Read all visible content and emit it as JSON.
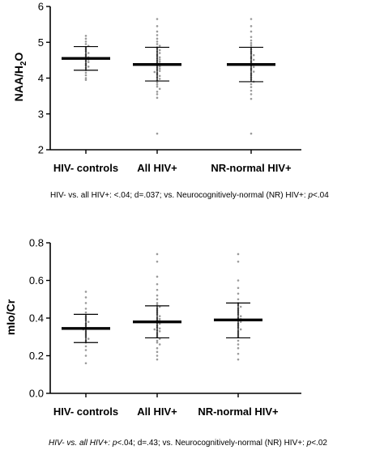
{
  "chart_data": [
    {
      "type": "scatter",
      "ylabel": "NAA/H2O",
      "ylabel_sub": "2",
      "ylabel_tail": "O",
      "ylabel_head": "NAA/H",
      "ylim": [
        2,
        6
      ],
      "yticks": [
        2,
        3,
        4,
        5,
        6
      ],
      "ytick_labels": [
        "2",
        "3",
        "4",
        "5",
        "6"
      ],
      "categories": [
        "HIV- controls",
        "All HIV+",
        "NR-normal HIV+"
      ],
      "groups": [
        {
          "name": "HIV- controls",
          "mean": 4.55,
          "sd_low": 4.22,
          "sd_high": 4.88,
          "points": [
            5.18,
            5.1,
            5.02,
            4.95,
            4.9,
            4.85,
            4.8,
            4.75,
            4.7,
            4.66,
            4.62,
            4.58,
            4.55,
            4.52,
            4.48,
            4.45,
            4.4,
            4.36,
            4.32,
            4.28,
            4.22,
            4.15,
            4.08,
            4.0,
            3.95
          ]
        },
        {
          "name": "All HIV+",
          "mean": 4.38,
          "sd_low": 3.92,
          "sd_high": 4.86,
          "points": [
            5.65,
            5.45,
            5.3,
            5.2,
            5.1,
            5.02,
            4.95,
            4.9,
            4.86,
            4.82,
            4.78,
            4.74,
            4.7,
            4.66,
            4.62,
            4.58,
            4.55,
            4.52,
            4.49,
            4.46,
            4.43,
            4.4,
            4.38,
            4.35,
            4.32,
            4.29,
            4.26,
            4.23,
            4.2,
            4.17,
            4.14,
            4.1,
            4.06,
            4.02,
            3.98,
            3.93,
            3.88,
            3.82,
            3.76,
            3.7,
            3.62,
            3.55,
            3.45,
            2.45
          ]
        },
        {
          "name": "NR-normal HIV+",
          "mean": 4.38,
          "sd_low": 3.9,
          "sd_high": 4.86,
          "points": [
            5.65,
            5.45,
            5.3,
            5.15,
            5.05,
            4.98,
            4.92,
            4.86,
            4.8,
            4.74,
            4.69,
            4.64,
            4.59,
            4.55,
            4.51,
            4.47,
            4.43,
            4.39,
            4.35,
            4.31,
            4.27,
            4.23,
            4.18,
            4.13,
            4.08,
            4.02,
            3.96,
            3.9,
            3.83,
            3.75,
            3.65,
            3.55,
            3.42,
            2.45
          ]
        }
      ],
      "annotation": "HIV- vs. all HIV+: <.04; d=.037; vs. Neurocognitively-normal (NR) HIV+: ",
      "annotation_p": "p",
      "annotation_tail": "<.04"
    },
    {
      "type": "scatter",
      "ylabel": "mIo/Cr",
      "ylim": [
        0.0,
        0.8
      ],
      "yticks": [
        0.0,
        0.2,
        0.4,
        0.6,
        0.8
      ],
      "ytick_labels": [
        "0.0",
        "0.2",
        "0.4",
        "0.6",
        "0.8"
      ],
      "categories": [
        "HIV- controls",
        "All HIV+",
        "NR-normal HIV+"
      ],
      "groups": [
        {
          "name": "HIV- controls",
          "mean": 0.345,
          "sd_low": 0.27,
          "sd_high": 0.42,
          "points": [
            0.54,
            0.51,
            0.48,
            0.45,
            0.43,
            0.41,
            0.4,
            0.39,
            0.38,
            0.37,
            0.36,
            0.35,
            0.345,
            0.34,
            0.33,
            0.32,
            0.31,
            0.3,
            0.29,
            0.28,
            0.27,
            0.25,
            0.23,
            0.2,
            0.16
          ]
        },
        {
          "name": "All HIV+",
          "mean": 0.38,
          "sd_low": 0.295,
          "sd_high": 0.465,
          "points": [
            0.74,
            0.7,
            0.62,
            0.58,
            0.55,
            0.52,
            0.5,
            0.48,
            0.47,
            0.46,
            0.45,
            0.44,
            0.43,
            0.42,
            0.41,
            0.4,
            0.395,
            0.39,
            0.385,
            0.38,
            0.375,
            0.37,
            0.36,
            0.35,
            0.345,
            0.34,
            0.335,
            0.33,
            0.32,
            0.31,
            0.3,
            0.29,
            0.28,
            0.27,
            0.26,
            0.24,
            0.22,
            0.2,
            0.18
          ]
        },
        {
          "name": "NR-normal HIV+",
          "mean": 0.39,
          "sd_low": 0.295,
          "sd_high": 0.48,
          "points": [
            0.74,
            0.7,
            0.6,
            0.56,
            0.53,
            0.5,
            0.48,
            0.47,
            0.46,
            0.45,
            0.44,
            0.43,
            0.42,
            0.41,
            0.4,
            0.395,
            0.39,
            0.38,
            0.37,
            0.36,
            0.35,
            0.34,
            0.33,
            0.32,
            0.31,
            0.3,
            0.28,
            0.26,
            0.24,
            0.21,
            0.18
          ]
        }
      ],
      "annotation_head_italic": "HIV- vs. all HIV+: ",
      "annotation_p1": "p",
      "annotation_mid": "<.04; d=.43; vs. Neurocognitively-normal (NR) HIV+: ",
      "annotation_p2": "p",
      "annotation_tail": "<.02"
    }
  ]
}
